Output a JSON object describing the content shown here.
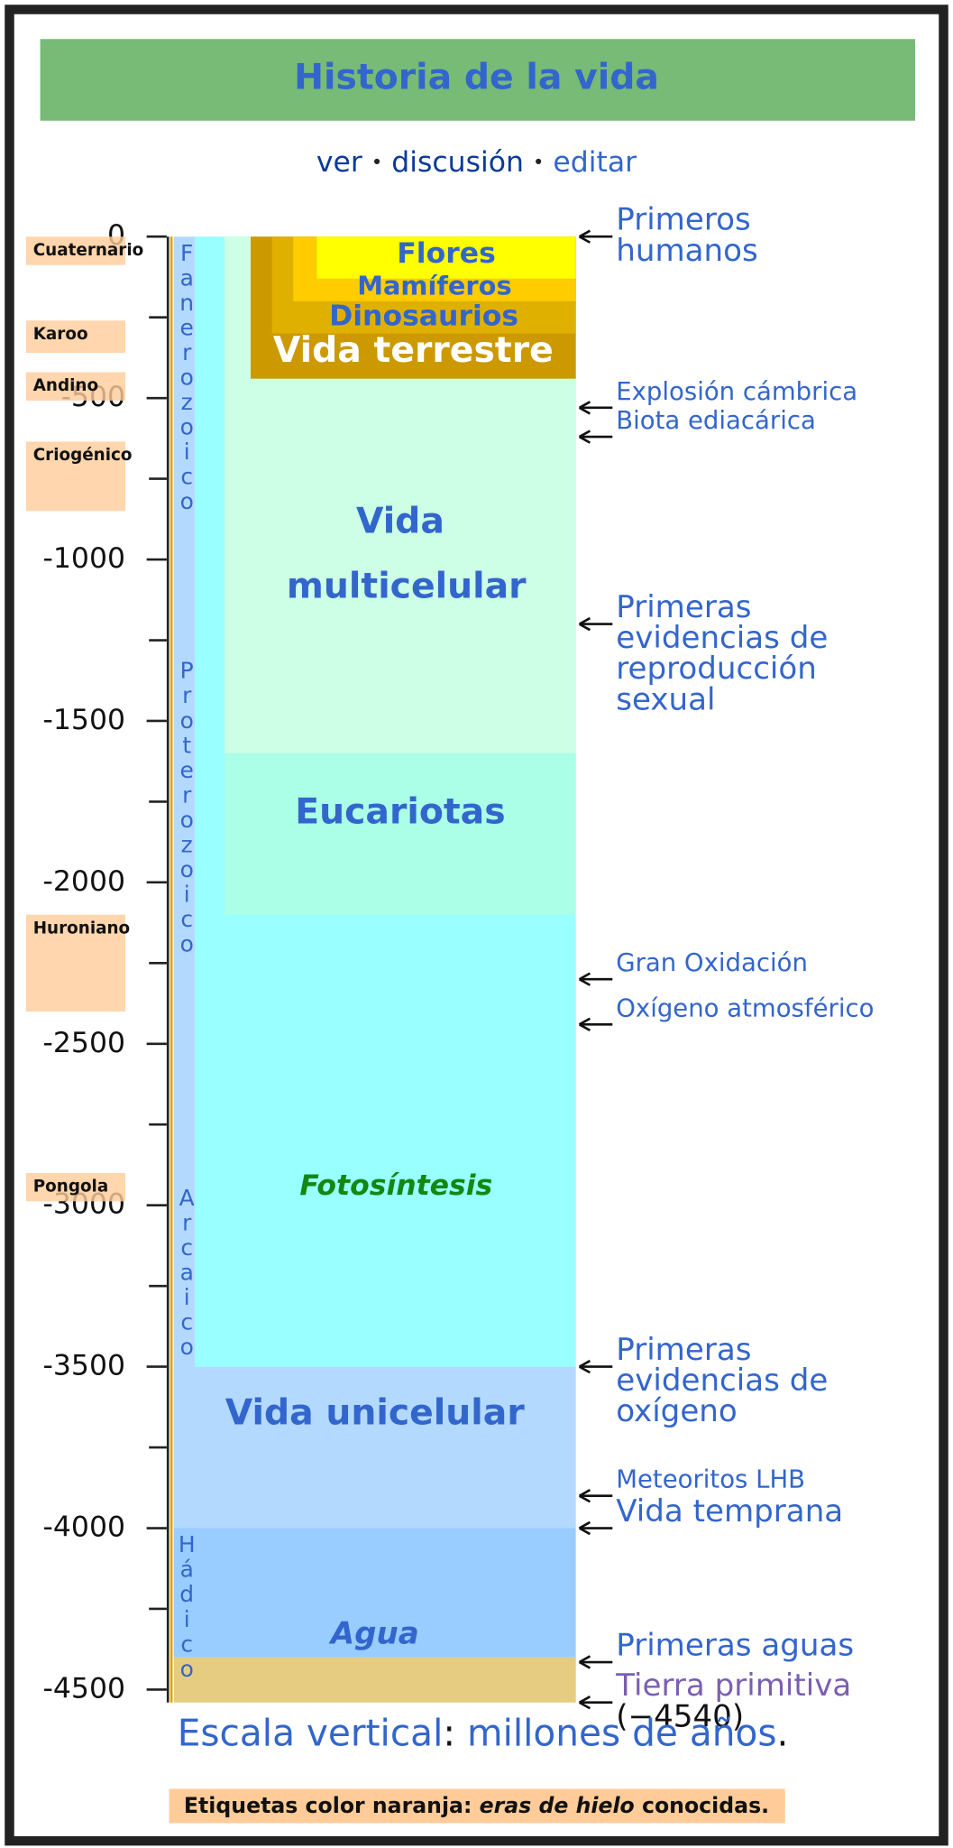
{
  "header": {
    "title": "Historia de la vida",
    "links": [
      "ver",
      "discusión",
      "editar"
    ],
    "separator": "•"
  },
  "chart_data": {
    "type": "timeline",
    "ylim": [
      0,
      -4540
    ],
    "yticks": [
      0,
      -500,
      -1000,
      -1500,
      -2000,
      -2500,
      -3000,
      -3500,
      -4000,
      -4500
    ],
    "minor_yticks": [
      -250,
      -750,
      -1250,
      -1750,
      -2250,
      -2750,
      -3250,
      -3750,
      -4250
    ],
    "eons": [
      {
        "name": "Fanerozoico",
        "start": 0,
        "end": -541
      },
      {
        "name": "Proterozoico",
        "start": -541,
        "end": -2500
      },
      {
        "name": "Arcaico",
        "start": -2500,
        "end": -4000
      },
      {
        "name": "Hádico",
        "start": -4000,
        "end": -4540
      }
    ],
    "earth_band": {
      "start": -4400,
      "end": -4540,
      "color": "#e5cc80"
    },
    "periods": [
      {
        "name": "Agua",
        "start": -4000,
        "end": -4400,
        "color": "#99ccff"
      },
      {
        "name": "Vida unicelular",
        "start": -3500,
        "end": -4000,
        "color": "#b3d9ff"
      },
      {
        "name": "Fotosíntesis",
        "start": 0,
        "end": -3500,
        "color": "#99ffff"
      },
      {
        "name": "Vida multicelular",
        "start": 0,
        "end": -1600,
        "color": "#ccffe5"
      },
      {
        "name": "Eucariotas",
        "start": -1600,
        "end": -2100,
        "color": "#aaffe6"
      },
      {
        "name": "Vida terrestre",
        "start": 0,
        "end": -440,
        "color": "#cc9900"
      },
      {
        "name": "Dinosaurios",
        "start": 0,
        "end": -300,
        "color": "#e0b000"
      },
      {
        "name": "Mamíferos",
        "start": 0,
        "end": -200,
        "color": "#ffcc00"
      },
      {
        "name": "Flores",
        "start": 0,
        "end": -130,
        "color": "#ffff00"
      }
    ],
    "events": [
      {
        "name": [
          "Primeros",
          "humanos"
        ],
        "value": 0
      },
      {
        "name": [
          "Explosión cámbrica"
        ],
        "value": -530
      },
      {
        "name": [
          "Biota ediacárica"
        ],
        "value": -620
      },
      {
        "name": [
          "Primeras",
          "evidencias de",
          "reproducción",
          "sexual"
        ],
        "value": -1200
      },
      {
        "name": [
          "Gran Oxidación"
        ],
        "value": -2300
      },
      {
        "name": [
          "Oxígeno atmosférico"
        ],
        "value": -2440
      },
      {
        "name": [
          "Primeras",
          "evidencias de",
          "oxígeno"
        ],
        "value": -3500
      },
      {
        "name": [
          "Meteoritos LHB"
        ],
        "value": -3900
      },
      {
        "name": [
          "Vida temprana"
        ],
        "value": -4000
      },
      {
        "name": [
          "Primeras aguas"
        ],
        "value": -4415
      },
      {
        "name": [
          "Tierra primitiva"
        ],
        "value": -4540,
        "value_label": "(−4540)"
      }
    ],
    "ice_ages": [
      {
        "name": "Cuaternario",
        "start": 0,
        "end": -3
      },
      {
        "name": "Karoo",
        "start": -260,
        "end": -360
      },
      {
        "name": "Andino",
        "start": -420,
        "end": -460
      },
      {
        "name": "Criogénico",
        "start": -635,
        "end": -850
      },
      {
        "name": "Huroniano",
        "start": -2100,
        "end": -2400
      },
      {
        "name": "Pongola",
        "start": -2900,
        "end": -2950
      }
    ]
  },
  "footer": {
    "scale_link": "Escala vertical",
    "colon": ":",
    "unit_link": "millones de años",
    "period": ".",
    "note": {
      "lead": "Etiquetas color naranja: ",
      "emphasis": "eras de hielo",
      "tail": " conocidas."
    }
  }
}
